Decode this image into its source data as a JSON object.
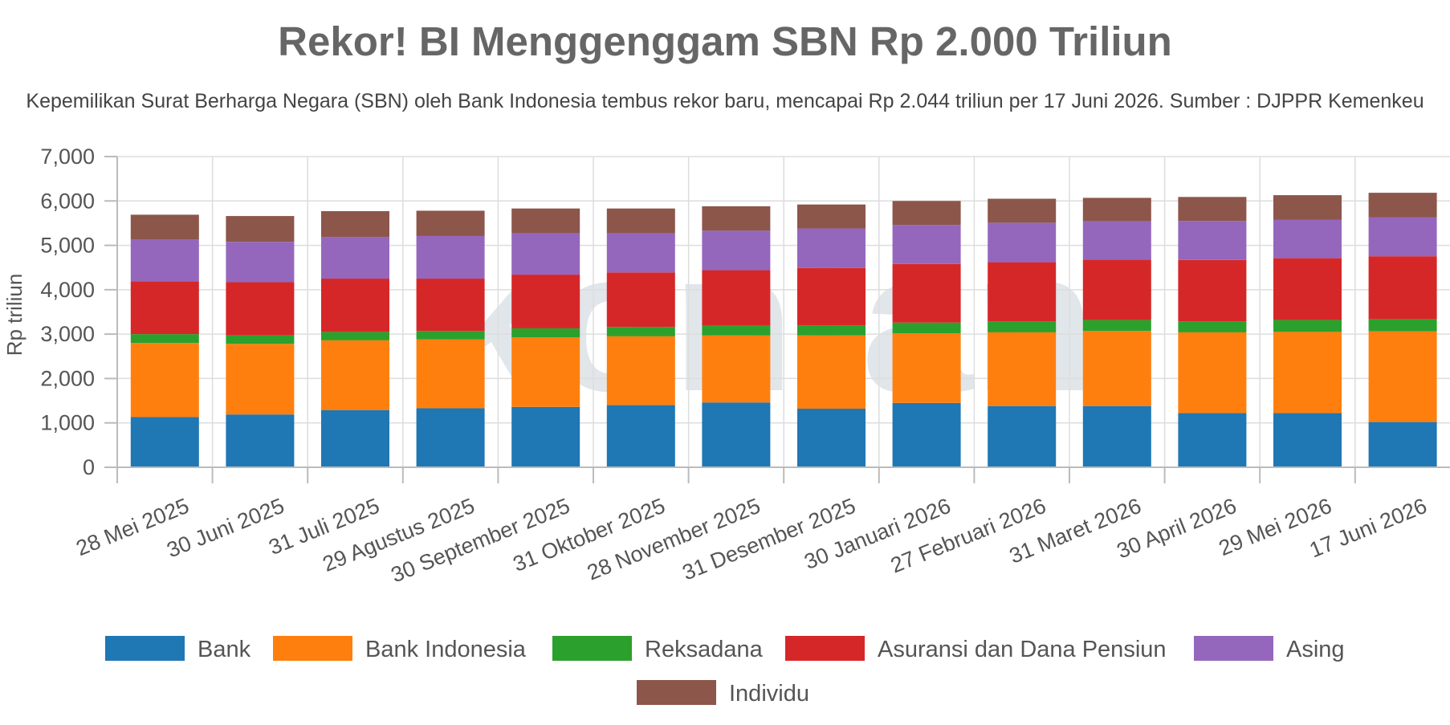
{
  "colors": {
    "Bank": "#1f77b4",
    "Bank Indonesia": "#ff7f0e",
    "Reksadana": "#2ca02c",
    "Asuransi dan Dana Pensiun": "#d62728",
    "Asing": "#9467bd",
    "Individu": "#8c564b",
    "grid": "#dddddd",
    "axis": "#bbbbbb",
    "watermark": "#c9d3dc"
  },
  "watermark_text": "kontan",
  "chart_data": {
    "type": "bar",
    "stacked": true,
    "title": "Rekor! BI Menggenggam SBN Rp 2.000 Triliun",
    "subtitle": "Kepemilikan Surat Berharga Negara (SBN) oleh Bank Indonesia tembus rekor baru, mencapai Rp 2.044 triliun per 17 Juni 2026. Sumber : DJPPR Kemenkeu",
    "xlabel": "",
    "ylabel": "Rp triliun",
    "ylim": [
      0,
      7000
    ],
    "yticks": [
      0,
      1000,
      2000,
      3000,
      4000,
      5000,
      6000,
      7000
    ],
    "ytick_labels": [
      "0",
      "1,000",
      "2,000",
      "3,000",
      "4,000",
      "5,000",
      "6,000",
      "7,000"
    ],
    "grid": true,
    "legend_position": "bottom",
    "categories": [
      "28 Mei 2025",
      "30 Juni 2025",
      "31 Juli 2025",
      "29 Agustus 2025",
      "30 September 2025",
      "31 Oktober 2025",
      "28 November 2025",
      "31 Desember 2025",
      "30 Januari 2026",
      "27 Februari 2026",
      "31 Maret 2026",
      "30 April 2026",
      "29 Mei 2026",
      "17 Juni 2026"
    ],
    "series": [
      {
        "name": "Bank",
        "values": [
          1130,
          1190,
          1290,
          1330,
          1360,
          1400,
          1460,
          1320,
          1450,
          1380,
          1380,
          1220,
          1220,
          1020
        ]
      },
      {
        "name": "Bank Indonesia",
        "values": [
          1670,
          1590,
          1570,
          1550,
          1570,
          1550,
          1510,
          1650,
          1570,
          1660,
          1690,
          1820,
          1830,
          2044
        ]
      },
      {
        "name": "Reksadana",
        "values": [
          200,
          190,
          190,
          190,
          200,
          210,
          220,
          230,
          240,
          250,
          250,
          250,
          270,
          270
        ]
      },
      {
        "name": "Asuransi dan Dana Pensiun",
        "values": [
          1190,
          1200,
          1200,
          1180,
          1210,
          1230,
          1250,
          1290,
          1320,
          1330,
          1360,
          1380,
          1390,
          1420
        ]
      },
      {
        "name": "Asing",
        "values": [
          940,
          910,
          940,
          960,
          930,
          880,
          890,
          890,
          880,
          890,
          860,
          880,
          870,
          880
        ]
      },
      {
        "name": "Individu",
        "values": [
          560,
          580,
          580,
          570,
          560,
          560,
          550,
          540,
          540,
          540,
          530,
          540,
          550,
          550
        ]
      }
    ]
  }
}
